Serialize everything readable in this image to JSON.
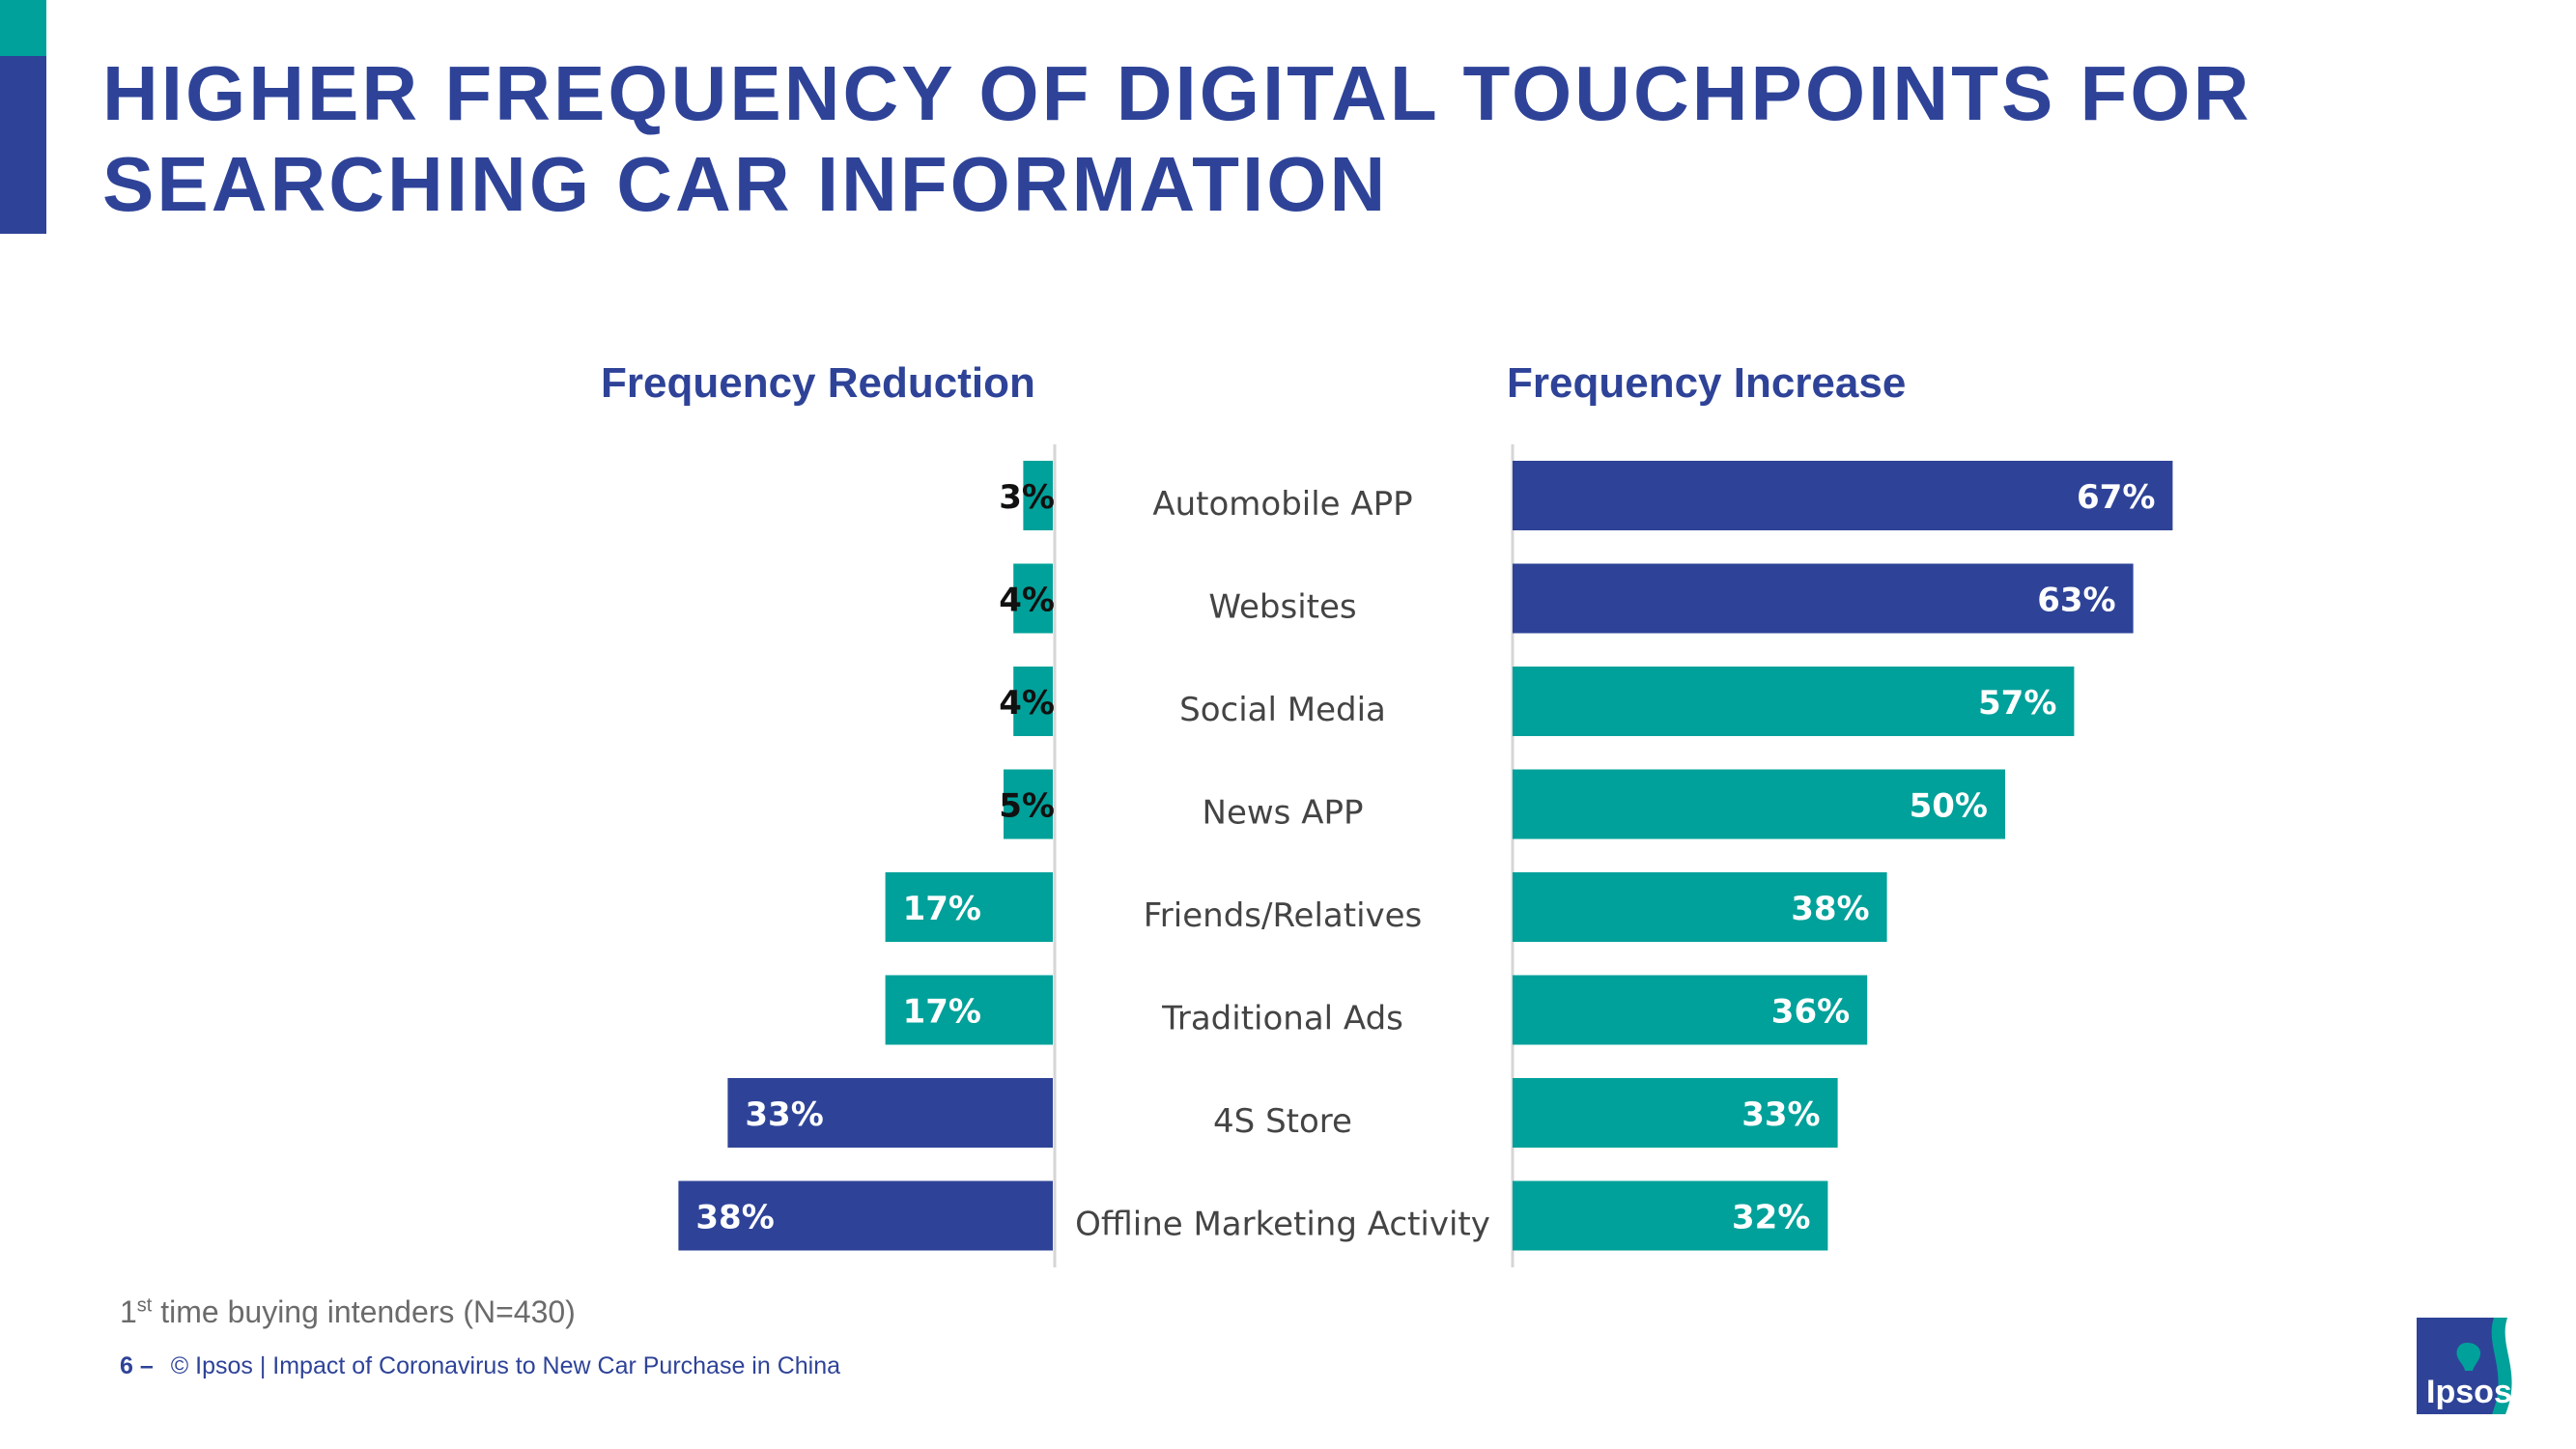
{
  "title": {
    "line1": "HIGHER FREQUENCY OF DIGITAL TOUCHPOINTS FOR",
    "line2": "SEARCHING CAR INFORMATION"
  },
  "colors": {
    "navy": "#2e4398",
    "teal": "#00a19a"
  },
  "chart_data": {
    "type": "bar",
    "orientation": "horizontal-diverging",
    "categories": [
      "Automobile APP",
      "Websites",
      "Social Media",
      "News APP",
      "Friends/Relatives",
      "Traditional Ads",
      "4S Store",
      "Offline Marketing Activity"
    ],
    "series": [
      {
        "name": "Frequency Reduction",
        "values": [
          3,
          4,
          4,
          5,
          17,
          17,
          33,
          38
        ],
        "labels": [
          "3%",
          "4%",
          "4%",
          "5%",
          "17%",
          "17%",
          "33%",
          "38%"
        ],
        "colors": [
          "#00a19a",
          "#00a19a",
          "#00a19a",
          "#00a19a",
          "#00a19a",
          "#00a19a",
          "#2e4398",
          "#2e4398"
        ]
      },
      {
        "name": "Frequency Increase",
        "values": [
          67,
          63,
          57,
          50,
          38,
          36,
          33,
          32
        ],
        "labels": [
          "67%",
          "63%",
          "57%",
          "50%",
          "38%",
          "36%",
          "33%",
          "32%"
        ],
        "colors": [
          "#2e4398",
          "#2e4398",
          "#00a19a",
          "#00a19a",
          "#00a19a",
          "#00a19a",
          "#00a19a",
          "#00a19a"
        ]
      }
    ],
    "xlim": [
      0,
      100
    ],
    "grid": false,
    "legend": "none"
  },
  "footnote": {
    "prefix": "1",
    "superscript": "st",
    "text": " time buying intenders (N=430)"
  },
  "footer": {
    "page_number": "6 –",
    "text": "© Ipsos | Impact of Coronavirus to New Car Purchase in China"
  },
  "logo": {
    "text": "Ipsos",
    "icon": "ipsos-logo-icon"
  }
}
